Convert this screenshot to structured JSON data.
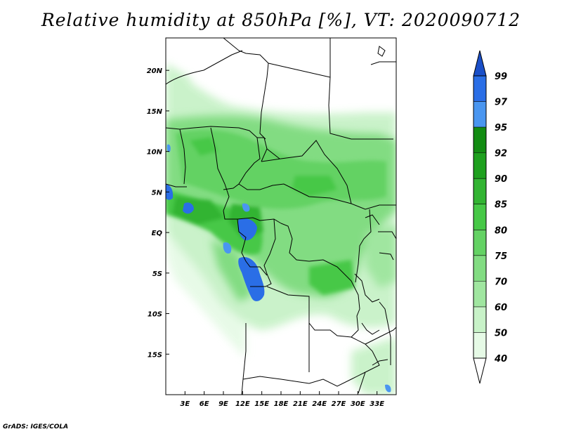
{
  "title": "Relative humidity at 850hPa [%], VT: 2020090712",
  "credit": "GrADS: IGES/COLA",
  "lat_labels": [
    "20N",
    "15N",
    "10N",
    "5N",
    "EQ",
    "5S",
    "10S",
    "15S"
  ],
  "lat_values": [
    20,
    15,
    10,
    5,
    0,
    -5,
    -10,
    -15
  ],
  "lon_labels": [
    "3E",
    "6E",
    "9E",
    "12E",
    "15E",
    "18E",
    "21E",
    "24E",
    "27E",
    "30E",
    "33E"
  ],
  "lon_values": [
    3,
    6,
    9,
    12,
    15,
    18,
    21,
    24,
    27,
    30,
    33
  ],
  "colorbar": {
    "labels": [
      "40",
      "50",
      "60",
      "70",
      "75",
      "80",
      "85",
      "90",
      "92",
      "95",
      "97",
      "99"
    ],
    "colors": [
      "#ffffff",
      "#e6fae6",
      "#c8f2c8",
      "#a0e6a0",
      "#82dc82",
      "#64d264",
      "#46c846",
      "#32b432",
      "#1ea01e",
      "#128c12",
      "#4a96f0",
      "#2a6ee6",
      "#1a4fc8"
    ]
  },
  "legend": {
    "below_40": "#ffffff",
    "r40_50": "#e6fae6",
    "r50_60": "#c8f2c8",
    "r60_70": "#a0e6a0",
    "r70_75": "#82dc82",
    "r75_80": "#64d264",
    "r80_85": "#46c846",
    "r85_90": "#32b432",
    "r90_92": "#1ea01e",
    "r92_95": "#128c12",
    "r95_97": "#4a96f0",
    "r97_99": "#2a6ee6",
    "above_99": "#1a4fc8"
  }
}
